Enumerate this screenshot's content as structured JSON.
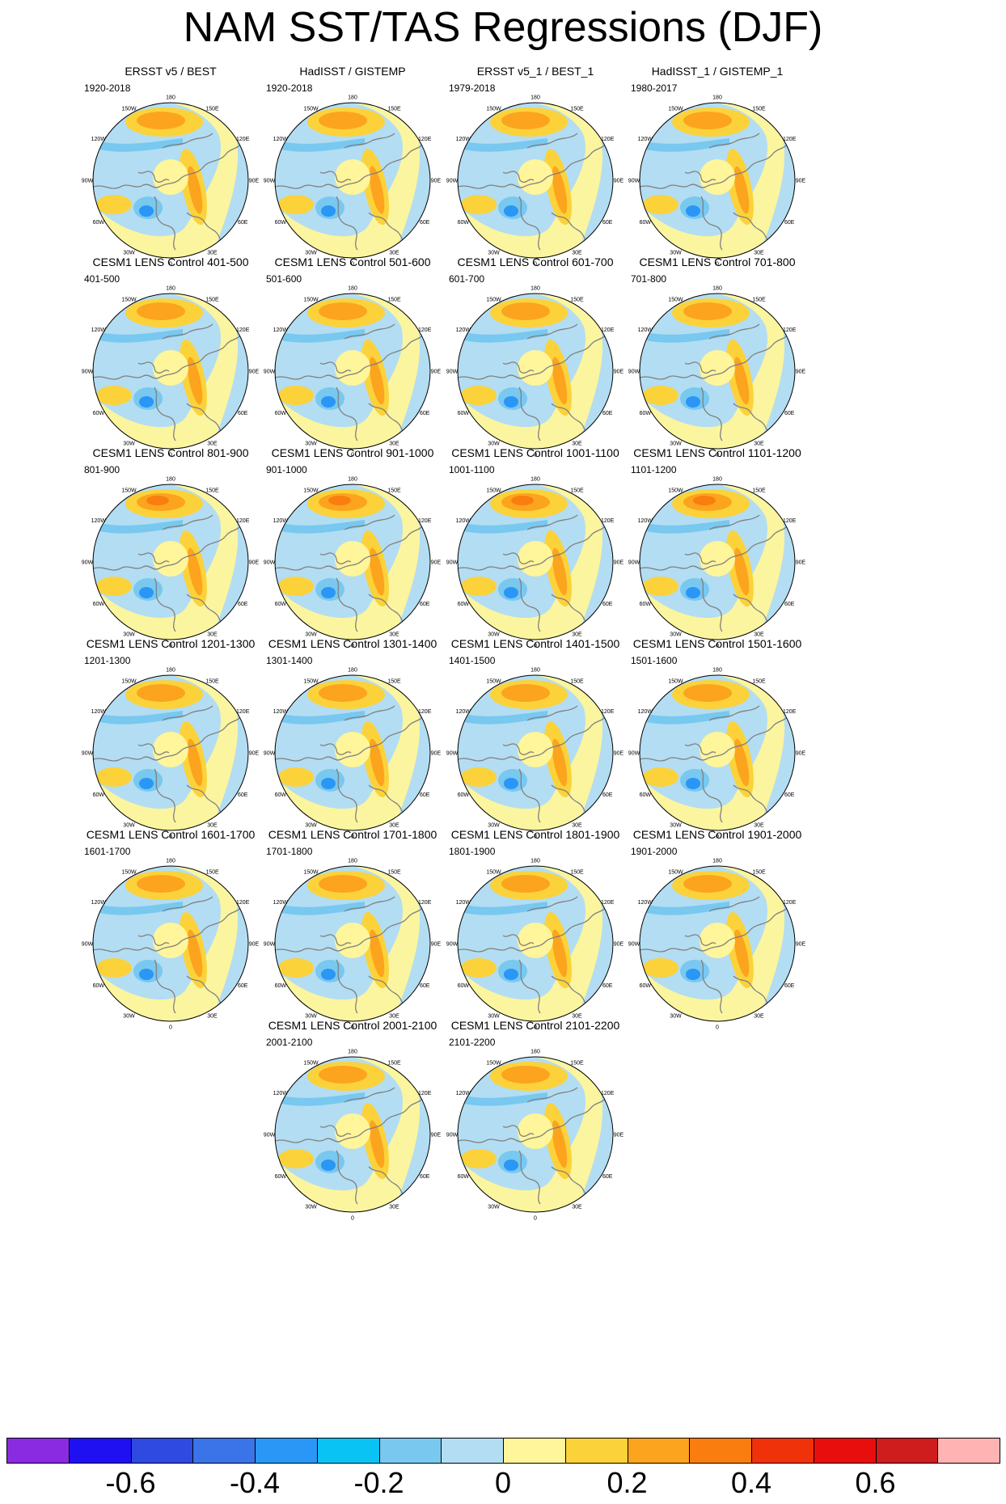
{
  "title": "NAM SST/TAS Regressions (DJF)",
  "lon_labels": [
    "180",
    "150E",
    "120E",
    "90E",
    "60E",
    "30E",
    "0",
    "30W",
    "60W",
    "90W",
    "120W",
    "150W"
  ],
  "panels": [
    {
      "title": "ERSST v5 / BEST",
      "period": "1920-2018"
    },
    {
      "title": "HadISST / GISTEMP",
      "period": "1920-2018"
    },
    {
      "title": "ERSST v5_1 / BEST_1",
      "period": "1979-2018"
    },
    {
      "title": "HadISST_1 / GISTEMP_1",
      "period": "1980-2017"
    },
    {
      "title": "CESM1 LENS Control 401-500",
      "period": "401-500"
    },
    {
      "title": "CESM1 LENS Control 501-600",
      "period": "501-600"
    },
    {
      "title": "CESM1 LENS Control 601-700",
      "period": "601-700"
    },
    {
      "title": "CESM1 LENS Control 701-800",
      "period": "701-800"
    },
    {
      "title": "CESM1 LENS Control 801-900",
      "period": "801-900"
    },
    {
      "title": "CESM1 LENS Control 901-1000",
      "period": "901-1000"
    },
    {
      "title": "CESM1 LENS Control 1001-1100",
      "period": "1001-1100"
    },
    {
      "title": "CESM1 LENS Control 1101-1200",
      "period": "1101-1200"
    },
    {
      "title": "CESM1 LENS Control 1201-1300",
      "period": "1201-1300"
    },
    {
      "title": "CESM1 LENS Control 1301-1400",
      "period": "1301-1400"
    },
    {
      "title": "CESM1 LENS Control 1401-1500",
      "period": "1401-1500"
    },
    {
      "title": "CESM1 LENS Control 1501-1600",
      "period": "1501-1600"
    },
    {
      "title": "CESM1 LENS Control 1601-1700",
      "period": "1601-1700"
    },
    {
      "title": "CESM1 LENS Control 1701-1800",
      "period": "1701-1800"
    },
    {
      "title": "CESM1 LENS Control 1801-1900",
      "period": "1801-1900"
    },
    {
      "title": "CESM1 LENS Control 1901-2000",
      "period": "1901-2000"
    },
    {
      "title": "CESM1 LENS Control 2001-2100",
      "period": "2001-2100"
    },
    {
      "title": "CESM1 LENS Control 2101-2200",
      "period": "2101-2200"
    }
  ],
  "colorbar": {
    "colors": [
      "#8a2be2",
      "#1e10f0",
      "#2f4ae0",
      "#3a74e8",
      "#2a96f5",
      "#0ac3f5",
      "#78c8f0",
      "#b3ddf2",
      "#fff59a",
      "#fcd23a",
      "#fca41e",
      "#fa7d0f",
      "#f0320a",
      "#e80e0e",
      "#cf1d1d",
      "#ffb3b3"
    ],
    "labels": [
      "-0.6",
      "-0.4",
      "-0.2",
      "0",
      "0.2",
      "0.4",
      "0.6"
    ]
  },
  "colors": {
    "ocean_base": "#b3ddf2",
    "pos_light": "#fff59a",
    "pos_mid": "#fcd23a",
    "pos_strong": "#fca41e",
    "pos_max": "#fa7d0f",
    "neg_light": "#78c8f0",
    "neg_strong": "#2a96f5",
    "coast": "#808080"
  }
}
